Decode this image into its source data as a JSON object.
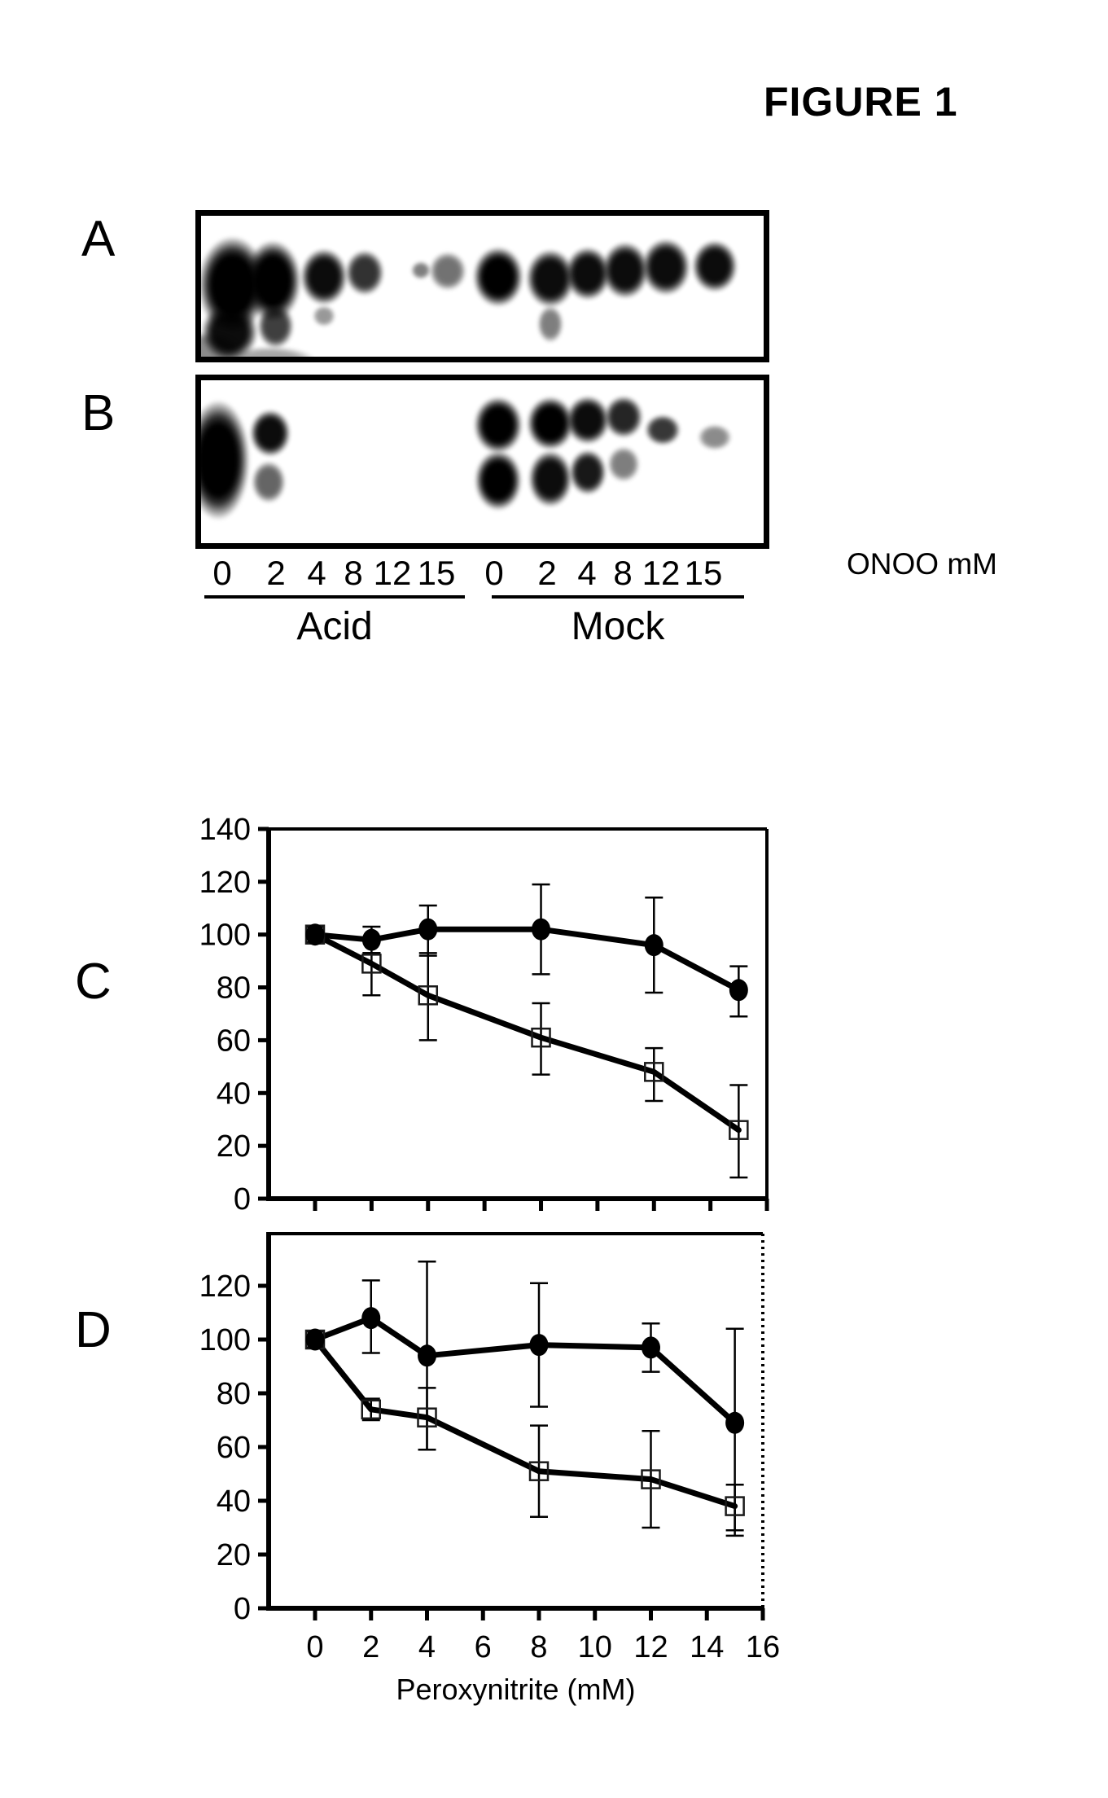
{
  "figure": {
    "title": "FIGURE 1"
  },
  "blots": {
    "panel_a_label": "A",
    "panel_b_label": "B",
    "acid_group_label": "Acid",
    "mock_group_label": "Mock",
    "unit_label": "ONOO mM",
    "lane_labels_acid": [
      "0",
      "2",
      "4",
      "8",
      "12",
      "15"
    ],
    "lane_labels_mock": [
      "0",
      "2",
      "4",
      "8",
      "12",
      "15"
    ],
    "panel_a_spots": [
      [
        285,
        350,
        85,
        120,
        1
      ],
      [
        282,
        408,
        70,
        70,
        0.95
      ],
      [
        335,
        345,
        70,
        100,
        1
      ],
      [
        338,
        400,
        45,
        55,
        0.75
      ],
      [
        250,
        430,
        95,
        45,
        0.45
      ],
      [
        330,
        442,
        115,
        35,
        0.35
      ],
      [
        398,
        340,
        58,
        70,
        0.95
      ],
      [
        398,
        388,
        28,
        26,
        0.4
      ],
      [
        448,
        335,
        48,
        56,
        0.8
      ],
      [
        517,
        332,
        24,
        22,
        0.5
      ],
      [
        550,
        333,
        46,
        48,
        0.55
      ],
      [
        612,
        340,
        62,
        74,
        1
      ],
      [
        676,
        342,
        60,
        72,
        0.95
      ],
      [
        676,
        398,
        32,
        46,
        0.5
      ],
      [
        722,
        336,
        56,
        66,
        0.95
      ],
      [
        768,
        332,
        58,
        70,
        0.95
      ],
      [
        818,
        328,
        60,
        70,
        0.95
      ],
      [
        878,
        327,
        56,
        64,
        0.95
      ]
    ],
    "panel_b_spots": [
      [
        268,
        565,
        78,
        148,
        1
      ],
      [
        332,
        532,
        50,
        58,
        0.95
      ],
      [
        330,
        592,
        42,
        52,
        0.6
      ],
      [
        612,
        522,
        60,
        70,
        1
      ],
      [
        612,
        590,
        58,
        74,
        1
      ],
      [
        676,
        520,
        58,
        66,
        1
      ],
      [
        676,
        588,
        54,
        70,
        0.95
      ],
      [
        722,
        516,
        54,
        60,
        0.95
      ],
      [
        722,
        580,
        46,
        56,
        0.9
      ],
      [
        766,
        512,
        48,
        52,
        0.85
      ],
      [
        766,
        570,
        40,
        44,
        0.5
      ],
      [
        814,
        528,
        44,
        38,
        0.78
      ],
      [
        878,
        537,
        42,
        32,
        0.45
      ]
    ]
  },
  "chart_data": [
    {
      "type": "line",
      "panel": "C",
      "x": [
        0,
        2,
        4,
        8,
        12,
        15
      ],
      "xlim": [
        0,
        16
      ],
      "ylim": [
        0,
        140
      ],
      "yticks": [
        0,
        20,
        40,
        60,
        80,
        100,
        120,
        140
      ],
      "xticks": [
        0,
        2,
        4,
        6,
        8,
        10,
        12,
        14,
        16
      ],
      "show_xtick_labels": false,
      "xlabel": "",
      "series": [
        {
          "name": "open-square-series",
          "marker": "square",
          "values": [
            100,
            89,
            77,
            61,
            48,
            26
          ],
          "err_lo": [
            97,
            77,
            60,
            47,
            37,
            8
          ],
          "err_hi": [
            103,
            93,
            93,
            74,
            57,
            43
          ]
        },
        {
          "name": "filled-circle-series",
          "marker": "circle",
          "values": [
            100,
            98,
            102,
            102,
            96,
            79
          ],
          "err_lo": [
            97,
            93,
            92,
            85,
            78,
            69
          ],
          "err_hi": [
            103,
            103,
            111,
            119,
            114,
            88
          ]
        }
      ]
    },
    {
      "type": "line",
      "panel": "D",
      "x": [
        0,
        2,
        4,
        8,
        12,
        15
      ],
      "xlim": [
        0,
        16
      ],
      "ylim": [
        0,
        139
      ],
      "yticks": [
        0,
        20,
        40,
        60,
        80,
        100,
        120
      ],
      "xticks": [
        0,
        2,
        4,
        6,
        8,
        10,
        12,
        14,
        16
      ],
      "show_xtick_labels": true,
      "xtick_labels": [
        "0",
        "2",
        "4",
        "6",
        "8",
        "10",
        "12",
        "14",
        "16"
      ],
      "xlabel": "Peroxynitrite (mM)",
      "series": [
        {
          "name": "open-square-series",
          "marker": "square",
          "values": [
            100,
            74,
            71,
            51,
            48,
            38
          ],
          "err_lo": [
            97,
            70,
            59,
            34,
            30,
            29
          ],
          "err_hi": [
            103,
            78,
            82,
            68,
            66,
            46
          ]
        },
        {
          "name": "filled-circle-series",
          "marker": "circle",
          "values": [
            100,
            108,
            94,
            98,
            97,
            69
          ],
          "err_lo": [
            97,
            95,
            59,
            75,
            88,
            27
          ],
          "err_hi": [
            103,
            122,
            129,
            121,
            106,
            104
          ]
        }
      ]
    }
  ]
}
